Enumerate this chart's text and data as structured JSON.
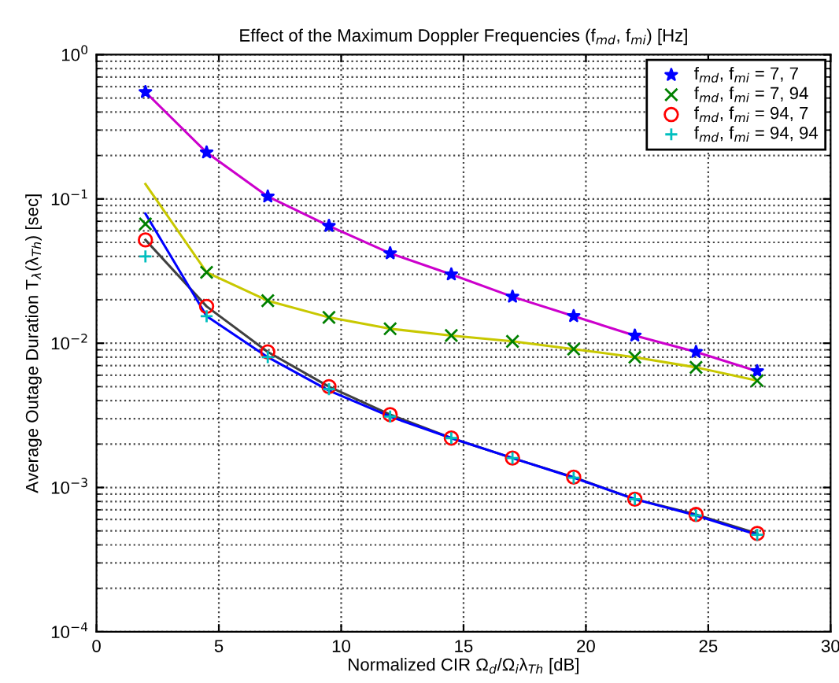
{
  "chart_data": {
    "type": "line",
    "title": "Effect of the Maximum Doppler Frequencies (f$_{md}$, f$_{mi}$) [Hz]",
    "xlabel": "Normalized CIR Ω$_{d}$/Ω$_{i}$λ$_{Th}$ [dB]",
    "ylabel": "Average Outage Duration T$_{λ}$(λ$_{Th}$) [sec]",
    "x": [
      2,
      4.5,
      7,
      9.5,
      12,
      14.5,
      17,
      19.5,
      22,
      24.5,
      27
    ],
    "log": "y",
    "grid": true,
    "legend": "top right",
    "line_style": "solid",
    "xlim": [
      0,
      30
    ],
    "xticks": [
      0,
      5,
      10,
      15,
      20,
      25,
      30
    ],
    "ylim": [
      0.0001,
      1
    ],
    "yticks": [
      {
        "value": 0.0001,
        "label": "10$^{−4}$"
      },
      {
        "value": 0.001,
        "label": "10$^{−3}$"
      },
      {
        "value": 0.01,
        "label": "10$^{−2}$"
      },
      {
        "value": 0.1,
        "label": "10$^{−1}$"
      },
      {
        "value": 1,
        "label": "10$^{0}$"
      }
    ],
    "series": [
      {
        "color": "#cc00cc",
        "marker": "none",
        "values": [
          0.55,
          0.21,
          0.104,
          0.065,
          0.042,
          0.03,
          0.021,
          0.0154,
          0.0113,
          0.0087,
          0.0064
        ]
      },
      {
        "color": "#c8c800",
        "marker": "none",
        "values": [
          0.127,
          0.031,
          0.0197,
          0.0151,
          0.0126,
          0.0113,
          0.0103,
          0.0091,
          0.008,
          0.0068,
          0.0055
        ]
      },
      {
        "color": "#404040",
        "marker": "none",
        "values": [
          0.052,
          0.018,
          0.0087,
          0.005,
          0.0032,
          0.0022,
          0.0016,
          0.00118,
          0.00083,
          0.00065,
          0.00048
        ]
      },
      {
        "color": "#0000ff",
        "marker": "none",
        "values": [
          0.079,
          0.0154,
          0.008,
          0.0047,
          0.0031,
          0.0022,
          0.0016,
          0.00117,
          0.00083,
          0.00064,
          0.00047
        ]
      },
      {
        "type": "scatter",
        "name": "f$_{md}$, f$_{mi}$ = 7, 7",
        "color": "#0000ff",
        "marker": "star",
        "values": [
          0.55,
          0.21,
          0.104,
          0.065,
          0.042,
          0.03,
          0.021,
          0.0154,
          0.0113,
          0.0087,
          0.0064
        ]
      },
      {
        "type": "scatter",
        "name": "f$_{md}$, f$_{mi}$ = 7, 94",
        "color": "#008000",
        "marker": "x",
        "values": [
          0.067,
          0.031,
          0.0197,
          0.0151,
          0.0126,
          0.0113,
          0.0103,
          0.0091,
          0.008,
          0.0068,
          0.0055
        ]
      },
      {
        "type": "scatter",
        "name": "f$_{md}$, f$_{mi}$ = 94, 7",
        "color": "#ff0000",
        "marker": "circle",
        "values": [
          0.052,
          0.018,
          0.0087,
          0.005,
          0.0032,
          0.0022,
          0.0016,
          0.00118,
          0.00083,
          0.00065,
          0.00048
        ]
      },
      {
        "type": "scatter",
        "name": "f$_{md}$, f$_{mi}$ = 94, 94",
        "color": "#00bfbf",
        "marker": "plus",
        "values": [
          0.04,
          0.0154,
          0.008,
          0.0048,
          0.0031,
          0.0022,
          0.0016,
          0.00117,
          0.00083,
          0.00064,
          0.00047
        ]
      }
    ]
  }
}
